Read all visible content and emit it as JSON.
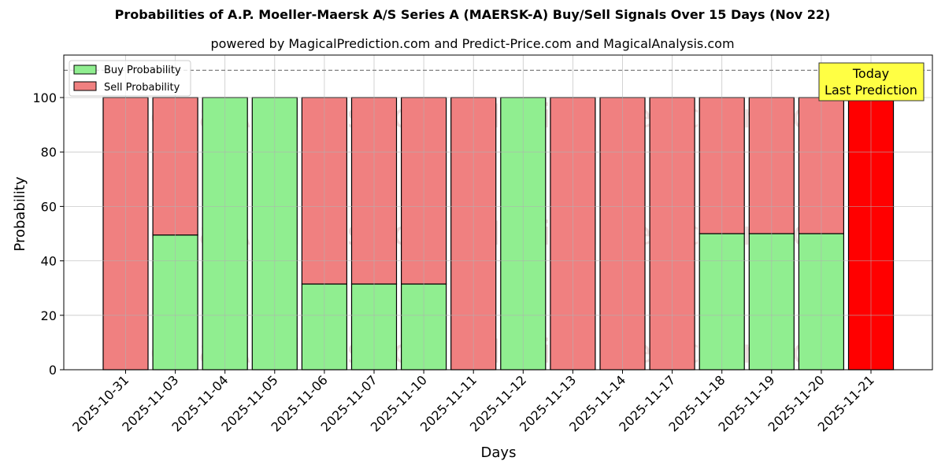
{
  "header": {
    "title": "Probabilities of A.P. Moeller-Maersk A/S Series A (MAERSK-A) Buy/Sell Signals Over 15 Days (Nov 22)",
    "subtitle": "powered by MagicalPrediction.com and Predict-Price.com and MagicalAnalysis.com"
  },
  "legend": {
    "buy_label": "Buy Probability",
    "sell_label": "Sell Probability"
  },
  "annotation": {
    "line1": "Today",
    "line2": "Last Prediction"
  },
  "watermarks": [
    "MagicalAnalysis.com",
    "MagicalPrediction.com"
  ],
  "colors": {
    "buy": "#90ee90",
    "sell": "#f08080",
    "today": "#ff0000",
    "annotation_bg": "#ffff44",
    "grid": "#b0b0b0",
    "dashed_line": "#808080"
  },
  "chart_data": {
    "type": "bar",
    "stacked": true,
    "title": "Probabilities of A.P. Moeller-Maersk A/S Series A (MAERSK-A) Buy/Sell Signals Over 15 Days (Nov 22)",
    "subtitle": "powered by MagicalPrediction.com and Predict-Price.com and MagicalAnalysis.com",
    "xlabel": "Days",
    "ylabel": "Probability",
    "ylim": [
      0,
      115
    ],
    "yticks": [
      0,
      20,
      40,
      60,
      80,
      100
    ],
    "grid": true,
    "legend_position": "upper left",
    "reference_line": {
      "y": 110,
      "style": "dashed"
    },
    "categories": [
      "2025-10-31",
      "2025-11-03",
      "2025-11-04",
      "2025-11-05",
      "2025-11-06",
      "2025-11-07",
      "2025-11-10",
      "2025-11-11",
      "2025-11-12",
      "2025-11-13",
      "2025-11-14",
      "2025-11-17",
      "2025-11-18",
      "2025-11-19",
      "2025-11-20",
      "2025-11-21"
    ],
    "series": [
      {
        "name": "Buy Probability",
        "values": [
          0,
          49.5,
          100,
          100,
          31.5,
          31.5,
          31.5,
          0,
          100,
          0,
          0,
          0,
          50,
          50,
          50,
          0
        ]
      },
      {
        "name": "Sell Probability",
        "values": [
          100,
          50.5,
          0,
          0,
          68.5,
          68.5,
          68.5,
          100,
          0,
          100,
          100,
          100,
          50,
          50,
          50,
          100
        ]
      }
    ],
    "highlight": {
      "category": "2025-11-21",
      "color": "#ff0000",
      "annotation": "Today\nLast Prediction"
    }
  }
}
